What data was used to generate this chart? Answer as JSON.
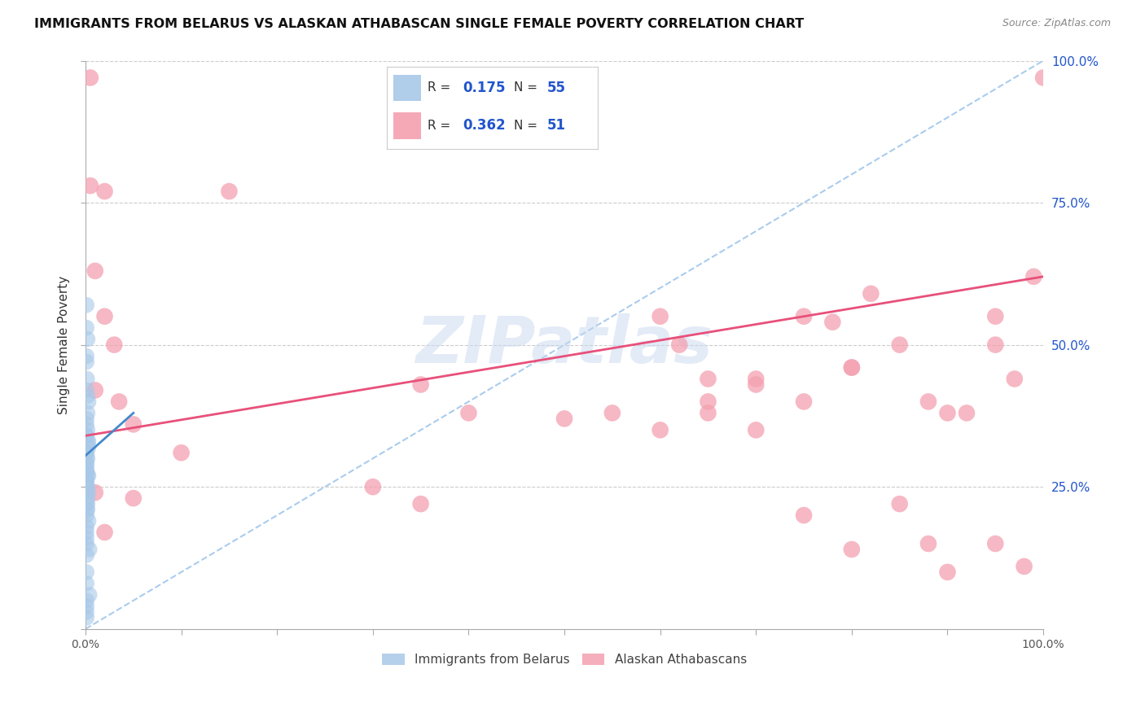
{
  "title": "IMMIGRANTS FROM BELARUS VS ALASKAN ATHABASCAN SINGLE FEMALE POVERTY CORRELATION CHART",
  "source": "Source: ZipAtlas.com",
  "ylabel": "Single Female Poverty",
  "y_ticks": [
    0.0,
    0.25,
    0.5,
    0.75,
    1.0
  ],
  "y_tick_labels_right": [
    "",
    "25.0%",
    "50.0%",
    "75.0%",
    "100.0%"
  ],
  "legend_r1": "0.175",
  "legend_n1": "55",
  "legend_r2": "0.362",
  "legend_n2": "51",
  "blue_scatter_color": "#a8c8e8",
  "pink_scatter_color": "#f4a0b0",
  "blue_line_color": "#4488cc",
  "pink_line_color": "#e8507a",
  "diag_color": "#aaccee",
  "grid_color": "#cccccc",
  "watermark_color": "#c8d8f0",
  "blue_label": "Immigrants from Belarus",
  "pink_label": "Alaskan Athabascans",
  "blue_points_x": [
    0.001,
    0.001,
    0.002,
    0.001,
    0.001,
    0.0015,
    0.001,
    0.002,
    0.003,
    0.002,
    0.001,
    0.001,
    0.002,
    0.001,
    0.001,
    0.002,
    0.003,
    0.003,
    0.001,
    0.001,
    0.001,
    0.002,
    0.001,
    0.001,
    0.001,
    0.001,
    0.001,
    0.002,
    0.003,
    0.001,
    0.001,
    0.001,
    0.002,
    0.001,
    0.003,
    0.002,
    0.002,
    0.001,
    0.002,
    0.001,
    0.001,
    0.003,
    0.001,
    0.001,
    0.001,
    0.001,
    0.004,
    0.001,
    0.001,
    0.001,
    0.004,
    0.001,
    0.001,
    0.001,
    0.001
  ],
  "blue_points_y": [
    0.57,
    0.53,
    0.51,
    0.48,
    0.47,
    0.44,
    0.42,
    0.41,
    0.4,
    0.38,
    0.37,
    0.36,
    0.35,
    0.34,
    0.34,
    0.33,
    0.33,
    0.32,
    0.31,
    0.31,
    0.3,
    0.3,
    0.29,
    0.29,
    0.28,
    0.28,
    0.27,
    0.27,
    0.27,
    0.26,
    0.26,
    0.25,
    0.25,
    0.24,
    0.24,
    0.23,
    0.22,
    0.22,
    0.21,
    0.21,
    0.2,
    0.19,
    0.18,
    0.17,
    0.16,
    0.15,
    0.14,
    0.13,
    0.1,
    0.08,
    0.06,
    0.05,
    0.04,
    0.03,
    0.02
  ],
  "pink_points_x": [
    0.005,
    0.005,
    0.02,
    0.15,
    0.01,
    0.02,
    0.03,
    0.01,
    0.035,
    0.05,
    0.6,
    0.62,
    0.65,
    0.7,
    0.75,
    0.78,
    0.8,
    0.82,
    0.85,
    0.88,
    0.9,
    0.95,
    0.95,
    0.97,
    0.99,
    0.55,
    0.6,
    0.65,
    0.7,
    0.75,
    0.8,
    0.3,
    0.35,
    0.5,
    0.35,
    0.4,
    0.01,
    0.02,
    0.05,
    0.1,
    0.65,
    0.7,
    0.75,
    0.8,
    0.85,
    0.88,
    0.9,
    0.92,
    0.95,
    0.98,
    1.0
  ],
  "pink_points_y": [
    0.97,
    0.78,
    0.77,
    0.77,
    0.63,
    0.55,
    0.5,
    0.42,
    0.4,
    0.36,
    0.55,
    0.5,
    0.44,
    0.43,
    0.55,
    0.54,
    0.46,
    0.59,
    0.5,
    0.4,
    0.38,
    0.55,
    0.5,
    0.44,
    0.62,
    0.38,
    0.35,
    0.4,
    0.44,
    0.4,
    0.46,
    0.25,
    0.22,
    0.37,
    0.43,
    0.38,
    0.24,
    0.17,
    0.23,
    0.31,
    0.38,
    0.35,
    0.2,
    0.14,
    0.22,
    0.15,
    0.1,
    0.38,
    0.15,
    0.11,
    0.97
  ],
  "blue_trend_x0": 0.0,
  "blue_trend_y0": 0.305,
  "blue_trend_x1": 0.05,
  "blue_trend_y1": 0.38,
  "pink_trend_x0": 0.0,
  "pink_trend_y0": 0.34,
  "pink_trend_x1": 1.0,
  "pink_trend_y1": 0.62,
  "xlim": [
    0.0,
    1.0
  ],
  "ylim": [
    0.0,
    1.0
  ]
}
